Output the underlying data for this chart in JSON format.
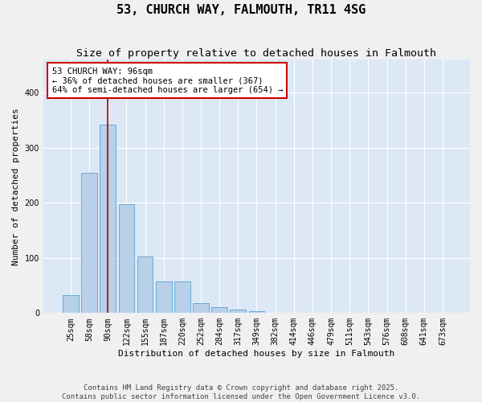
{
  "title": "53, CHURCH WAY, FALMOUTH, TR11 4SG",
  "subtitle": "Size of property relative to detached houses in Falmouth",
  "xlabel": "Distribution of detached houses by size in Falmouth",
  "ylabel": "Number of detached properties",
  "categories": [
    "25sqm",
    "58sqm",
    "90sqm",
    "122sqm",
    "155sqm",
    "187sqm",
    "220sqm",
    "252sqm",
    "284sqm",
    "317sqm",
    "349sqm",
    "382sqm",
    "414sqm",
    "446sqm",
    "479sqm",
    "511sqm",
    "543sqm",
    "576sqm",
    "608sqm",
    "641sqm",
    "673sqm"
  ],
  "values": [
    33,
    255,
    342,
    197,
    103,
    57,
    57,
    18,
    10,
    6,
    3,
    1,
    0,
    0,
    0,
    0,
    0,
    0,
    0,
    0,
    0
  ],
  "bar_color": "#b8d0e8",
  "bar_edgecolor": "#6aaad4",
  "fig_bg_color": "#f0f0f0",
  "ax_bg_color": "#dce8f5",
  "grid_color": "#ffffff",
  "annotation_text": "53 CHURCH WAY: 96sqm\n← 36% of detached houses are smaller (367)\n64% of semi-detached houses are larger (654) →",
  "annotation_box_edgecolor": "#cc0000",
  "vline_x": 2.0,
  "vline_color": "#aa0000",
  "ylim": [
    0,
    460
  ],
  "footer": "Contains HM Land Registry data © Crown copyright and database right 2025.\nContains public sector information licensed under the Open Government Licence v3.0.",
  "title_fontsize": 11,
  "subtitle_fontsize": 9.5,
  "xlabel_fontsize": 8,
  "ylabel_fontsize": 8,
  "tick_fontsize": 7,
  "annotation_fontsize": 7.5,
  "footer_fontsize": 6.5
}
